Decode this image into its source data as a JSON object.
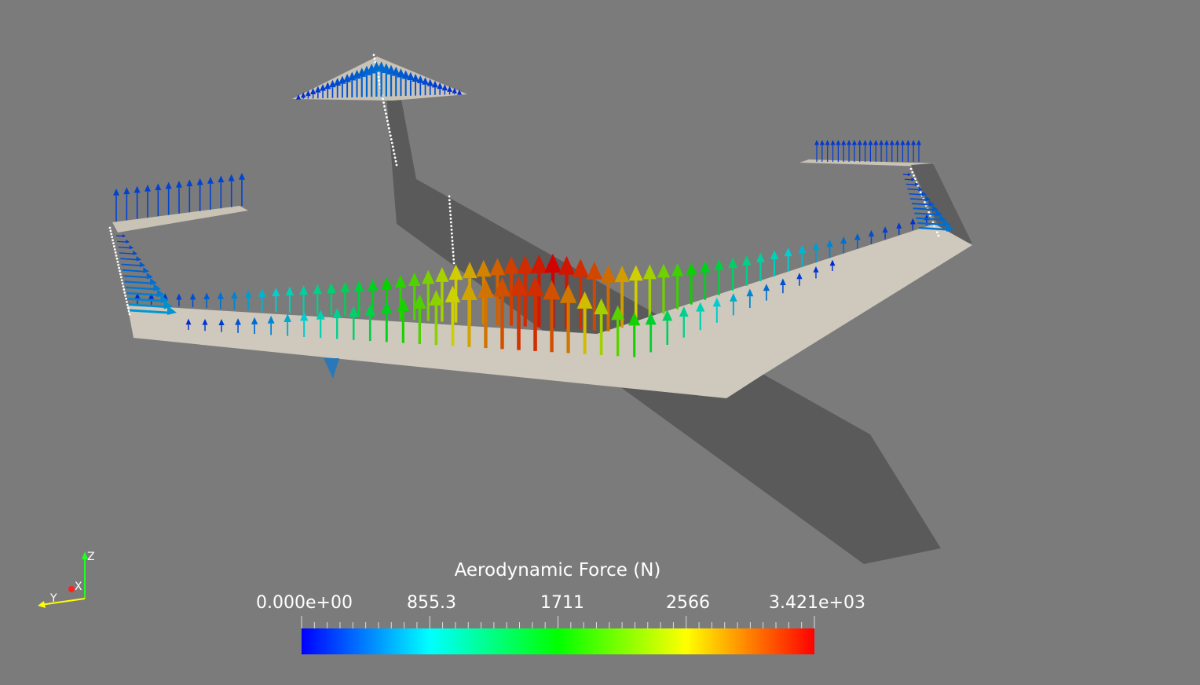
{
  "colorbar": {
    "title": "Aerodynamic Force (N)",
    "labels": [
      "0.000e+00",
      "855.3",
      "1711",
      "2566",
      "3.421e+03"
    ],
    "range": [
      0,
      3421
    ],
    "colormap": [
      "#0000ff",
      "#00ffff",
      "#00ff00",
      "#ffff00",
      "#ff0000"
    ]
  },
  "orientation_axes": {
    "x": "X",
    "y": "Y",
    "z": "Z",
    "x_color": "#ff2020",
    "y_color": "#ffff00",
    "z_color": "#20ff20"
  },
  "scene": {
    "surface_color": "#cfc9bd",
    "fuselage_color": "#5a5a5a",
    "background": "#7b7b7b",
    "components": [
      "main-wing",
      "fuselage",
      "vertical-tail",
      "horizontal-tail",
      "left-winglet",
      "right-winglet"
    ],
    "main_wing_force_distribution": [
      0.05,
      0.08,
      0.15,
      0.25,
      0.35,
      0.45,
      0.6,
      0.78,
      0.92,
      1.0,
      0.9,
      0.7,
      0.5,
      0.35,
      0.25,
      0.15,
      0.08,
      0.05
    ]
  }
}
